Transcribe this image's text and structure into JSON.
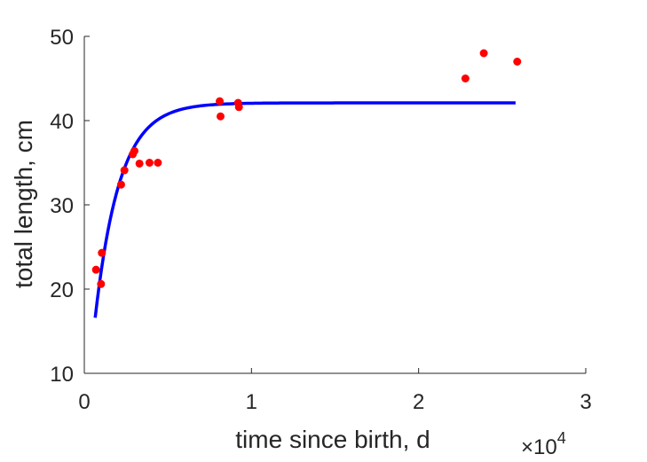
{
  "chart_data": {
    "type": "scatter",
    "xlabel": "time since birth, d",
    "ylabel": "total length, cm",
    "x_exponent_label": "×10^4",
    "x_exponent_base": "×10",
    "x_exponent_power": "4",
    "xlim": [
      0,
      30000
    ],
    "ylim": [
      10,
      50
    ],
    "x_ticks": [
      0,
      10000,
      20000,
      30000
    ],
    "x_tick_labels": [
      "0",
      "1",
      "2",
      "3"
    ],
    "y_ticks": [
      10,
      20,
      30,
      40,
      50
    ],
    "y_tick_labels": [
      "10",
      "20",
      "30",
      "40",
      "50"
    ],
    "grid": false,
    "series": [
      {
        "kind": "scatter",
        "color": "#ff0000",
        "points": [
          {
            "x": 700,
            "y": 22.3
          },
          {
            "x": 1000,
            "y": 20.6
          },
          {
            "x": 1050,
            "y": 24.3
          },
          {
            "x": 2200,
            "y": 32.4
          },
          {
            "x": 2400,
            "y": 34.1
          },
          {
            "x": 2900,
            "y": 36.0
          },
          {
            "x": 3000,
            "y": 36.4
          },
          {
            "x": 3300,
            "y": 34.9
          },
          {
            "x": 3900,
            "y": 35.0
          },
          {
            "x": 4400,
            "y": 35.0
          },
          {
            "x": 8100,
            "y": 42.3
          },
          {
            "x": 8150,
            "y": 40.5
          },
          {
            "x": 9200,
            "y": 42.1
          },
          {
            "x": 9250,
            "y": 41.6
          },
          {
            "x": 22800,
            "y": 45.0
          },
          {
            "x": 23900,
            "y": 48.0
          },
          {
            "x": 25900,
            "y": 47.0
          }
        ]
      },
      {
        "kind": "line",
        "color": "#0000ff",
        "model": {
          "Linf": 42.1,
          "L0": 16.6,
          "k": 0.00068,
          "x0": 650,
          "x_end": 25800
        }
      }
    ]
  }
}
